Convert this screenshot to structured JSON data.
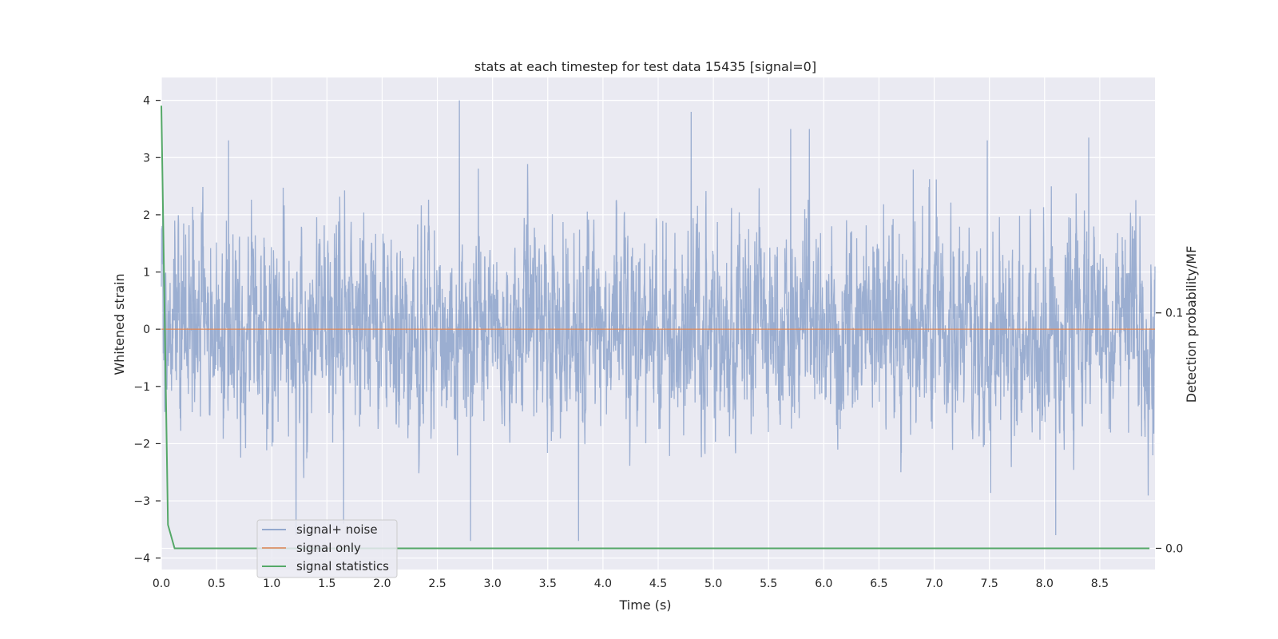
{
  "chart_data": {
    "type": "line",
    "title": "stats at each timestep for test data 15435 [signal=0]",
    "xlabel": "Time (s)",
    "ylabel": "Whitened strain",
    "ylabel_right": "Detection probability/MF",
    "xlim": [
      0.0,
      9.0
    ],
    "ylim": [
      -4.2,
      4.4
    ],
    "ylim_right": [
      -0.009,
      0.2
    ],
    "x_ticks": [
      "0.0",
      "0.5",
      "1.0",
      "1.5",
      "2.0",
      "2.5",
      "3.0",
      "3.5",
      "4.0",
      "4.5",
      "5.0",
      "5.5",
      "6.0",
      "6.5",
      "7.0",
      "7.5",
      "8.0",
      "8.5"
    ],
    "y_ticks": [
      "4",
      "3",
      "2",
      "1",
      "0",
      "−1",
      "−2",
      "−3",
      "−4"
    ],
    "y_ticks_right": [
      "0.1",
      "0.0"
    ],
    "grid": true,
    "legend_position": "lower-left",
    "series": [
      {
        "name": "signal+ noise",
        "axis": "left",
        "color": "#4c72b0",
        "sample_rate_hz": 455,
        "duration_s": 9.0,
        "envelope": {
          "typical_max": 2.3,
          "typical_min": -2.4,
          "peak_max": 4.0,
          "peak_min": -3.7
        },
        "peaks": [
          {
            "x": 0.61,
            "y": 3.3
          },
          {
            "x": 2.7,
            "y": 4.0
          },
          {
            "x": 2.8,
            "y": -3.7
          },
          {
            "x": 3.78,
            "y": -3.7
          },
          {
            "x": 4.8,
            "y": 3.8
          },
          {
            "x": 5.7,
            "y": 3.5
          },
          {
            "x": 5.87,
            "y": 3.5
          },
          {
            "x": 7.48,
            "y": 3.3
          },
          {
            "x": 8.1,
            "y": -3.6
          },
          {
            "x": 8.4,
            "y": 3.35
          },
          {
            "x": 1.22,
            "y": -3.6
          },
          {
            "x": 1.65,
            "y": -3.4
          }
        ]
      },
      {
        "name": "signal only",
        "axis": "left",
        "color": "#dd8452",
        "x": [
          0.0,
          9.0
        ],
        "y": [
          0.0,
          0.0
        ]
      },
      {
        "name": "signal statistics",
        "axis": "right",
        "color": "#55a868",
        "x": [
          0.0,
          0.06,
          0.12,
          0.25,
          0.5,
          1.0,
          2.0,
          3.0,
          4.0,
          5.0,
          6.0,
          7.0,
          8.0,
          8.95
        ],
        "y": [
          0.188,
          0.01,
          0.0,
          0.0,
          0.0,
          0.0,
          0.0,
          0.0,
          0.0,
          0.0,
          0.0,
          0.0,
          0.0,
          0.0
        ]
      }
    ]
  },
  "colors": {
    "plot_background": "#eaeaf2",
    "grid": "#ffffff",
    "text": "#262626"
  }
}
